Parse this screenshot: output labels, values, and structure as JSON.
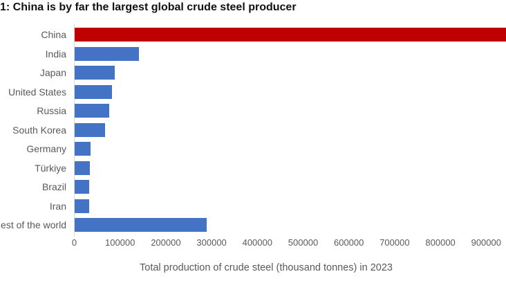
{
  "title": "1: China is by far the largest global crude steel producer",
  "colors": {
    "highlight_bar": "#c00000",
    "default_bar": "#4472c4",
    "axis_line": "#d9d9d9",
    "label_text": "#595959",
    "title_text": "#111111"
  },
  "chart_data": {
    "type": "bar",
    "orientation": "horizontal",
    "title": "1: China is by far the largest global crude steel producer",
    "categories": [
      "China",
      "India",
      "Japan",
      "United States",
      "Russia",
      "South Korea",
      "Germany",
      "Türkiye",
      "Brazil",
      "Iran",
      "Rest of the world"
    ],
    "values": [
      1019080,
      140800,
      87000,
      81400,
      76000,
      66700,
      35400,
      33700,
      31900,
      31100,
      289100
    ],
    "highlight_index": 0,
    "xlabel": "Total production of crude steel (thousand tonnes) in 2023",
    "ylabel": "",
    "xlim": [
      0,
      900000
    ],
    "x_ticks": [
      0,
      100000,
      200000,
      300000,
      400000,
      500000,
      600000,
      700000,
      800000,
      900000
    ],
    "grid": false,
    "legend": "none",
    "notes": "China bar extends past the right edge of the visible area; left category labels are clipped at the left edge"
  }
}
